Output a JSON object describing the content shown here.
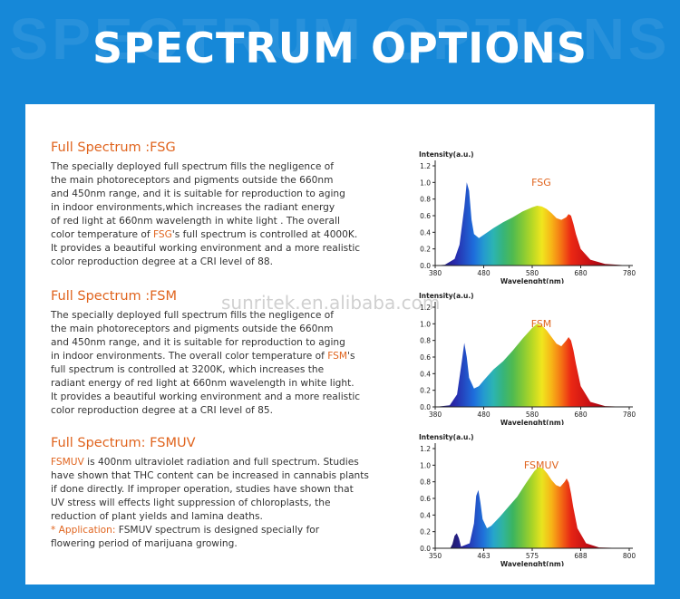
{
  "header": {
    "title": "SPECTRUM OPTIONS",
    "ghost_title": "SPECTRUM OPTIONS"
  },
  "watermark": "sunritek.en.alibaba.com",
  "sections": [
    {
      "title": "Full Spectrum :FSG",
      "lines": [
        [
          "The specially deployed full spectrum  fills the negligence of"
        ],
        [
          "the main photoreceptors and pigments outside the 660nm"
        ],
        [
          "and 450nm range, and it is suitable for reproduction to aging"
        ],
        [
          "in indoor environments,which increases the radiant energy"
        ],
        [
          "of red light at 660nm wavelength in white light . The overall"
        ],
        [
          "color temperature of ",
          "FSG",
          "'s full spectrum is controlled at 4000K."
        ],
        [
          "It provides a beautiful working environment and a more realistic"
        ],
        [
          "color reproduction degree at a CRI level of 88."
        ]
      ]
    },
    {
      "title": "Full Spectrum :FSM",
      "lines": [
        [
          "The specially deployed full  spectrum fills the negligence of"
        ],
        [
          "the main photoreceptors and pigments outside the 660nm"
        ],
        [
          "and 450nm range, and it is suitable for reproduction to aging"
        ],
        [
          "in indoor environments. The overall color temperature of ",
          "FSM",
          "'s"
        ],
        [
          "full spectrum is controlled at 3200K, which increases the"
        ],
        [
          "radiant energy of red light at 660nm wavelength in white light."
        ],
        [
          "It provides a beautiful working environment and a more realistic"
        ],
        [
          "color reproduction degree at a CRI level of 85."
        ]
      ]
    },
    {
      "title": "Full Spectrum: FSMUV",
      "lines": [
        [
          "",
          "FSMUV",
          " is 400nm ultraviolet radiation and full spectrum. Studies"
        ],
        [
          "have shown that THC content can be increased in cannabis plants"
        ],
        [
          "if done directly. If improper operation, studies have shown that"
        ],
        [
          "UV stress will effects light suppression of chloroplasts, the"
        ],
        [
          "reduction of plant yields and lamina deaths."
        ],
        [
          "",
          "* Application:",
          " FSMUV spectrum is designed specially for"
        ],
        [
          "flowering period of marijuana growing."
        ]
      ]
    }
  ],
  "chart_data": [
    {
      "type": "area",
      "title": "FSG",
      "xlabel": "Wavelenght(nm)",
      "ylabel": "Intensity(a.u.)",
      "xlim": [
        380,
        780
      ],
      "ylim": [
        0,
        1.2
      ],
      "x_ticks": [
        "380",
        "480",
        "580",
        "680",
        "780"
      ],
      "y_ticks": [
        "0.0",
        "0.2",
        "0.4",
        "0.6",
        "0.8",
        "1.0",
        "1.2"
      ],
      "x": [
        380,
        400,
        420,
        430,
        440,
        445,
        450,
        455,
        460,
        470,
        480,
        500,
        520,
        540,
        560,
        580,
        590,
        600,
        610,
        620,
        630,
        640,
        650,
        655,
        660,
        665,
        670,
        680,
        700,
        730,
        780
      ],
      "y": [
        0,
        0.01,
        0.08,
        0.25,
        0.7,
        1.0,
        0.9,
        0.55,
        0.38,
        0.33,
        0.37,
        0.45,
        0.52,
        0.58,
        0.65,
        0.7,
        0.72,
        0.71,
        0.68,
        0.63,
        0.57,
        0.55,
        0.58,
        0.62,
        0.6,
        0.5,
        0.38,
        0.2,
        0.07,
        0.02,
        0
      ]
    },
    {
      "type": "area",
      "title": "FSM",
      "xlabel": "Wavelenght(nm)",
      "ylabel": "Intensity(a.u.)",
      "xlim": [
        380,
        780
      ],
      "ylim": [
        0,
        1.2
      ],
      "x_ticks": [
        "380",
        "480",
        "580",
        "680",
        "780"
      ],
      "y_ticks": [
        "0.0",
        "0.2",
        "0.4",
        "0.6",
        "0.8",
        "1.0",
        "1.2"
      ],
      "x": [
        380,
        410,
        425,
        435,
        440,
        445,
        450,
        460,
        470,
        480,
        500,
        520,
        540,
        560,
        580,
        590,
        600,
        610,
        620,
        630,
        640,
        650,
        655,
        660,
        665,
        670,
        680,
        700,
        730,
        780
      ],
      "y": [
        0,
        0.02,
        0.15,
        0.55,
        0.77,
        0.6,
        0.35,
        0.22,
        0.25,
        0.32,
        0.45,
        0.55,
        0.68,
        0.82,
        0.95,
        1.0,
        0.98,
        0.92,
        0.84,
        0.76,
        0.73,
        0.8,
        0.84,
        0.8,
        0.68,
        0.52,
        0.25,
        0.06,
        0.01,
        0
      ]
    },
    {
      "type": "area",
      "title": "FSMUV",
      "xlabel": "Wavelenght(nm)",
      "ylabel": "Intensity(a.u.)",
      "xlim": [
        350,
        800
      ],
      "ylim": [
        0,
        1.2
      ],
      "x_ticks": [
        "350",
        "463",
        "575",
        "688",
        "800"
      ],
      "y_ticks": [
        "0.0",
        "0.2",
        "0.4",
        "0.6",
        "0.8",
        "1.0",
        "1.2"
      ],
      "x": [
        350,
        385,
        390,
        395,
        400,
        405,
        410,
        430,
        440,
        445,
        450,
        455,
        460,
        470,
        480,
        500,
        520,
        540,
        560,
        580,
        590,
        600,
        610,
        620,
        630,
        640,
        650,
        655,
        660,
        665,
        670,
        680,
        700,
        730,
        800
      ],
      "y": [
        0,
        0,
        0.05,
        0.15,
        0.18,
        0.12,
        0.02,
        0.06,
        0.3,
        0.63,
        0.7,
        0.55,
        0.35,
        0.24,
        0.27,
        0.38,
        0.5,
        0.62,
        0.78,
        0.93,
        0.98,
        0.96,
        0.9,
        0.82,
        0.76,
        0.74,
        0.8,
        0.84,
        0.79,
        0.66,
        0.5,
        0.24,
        0.06,
        0.01,
        0
      ]
    }
  ]
}
